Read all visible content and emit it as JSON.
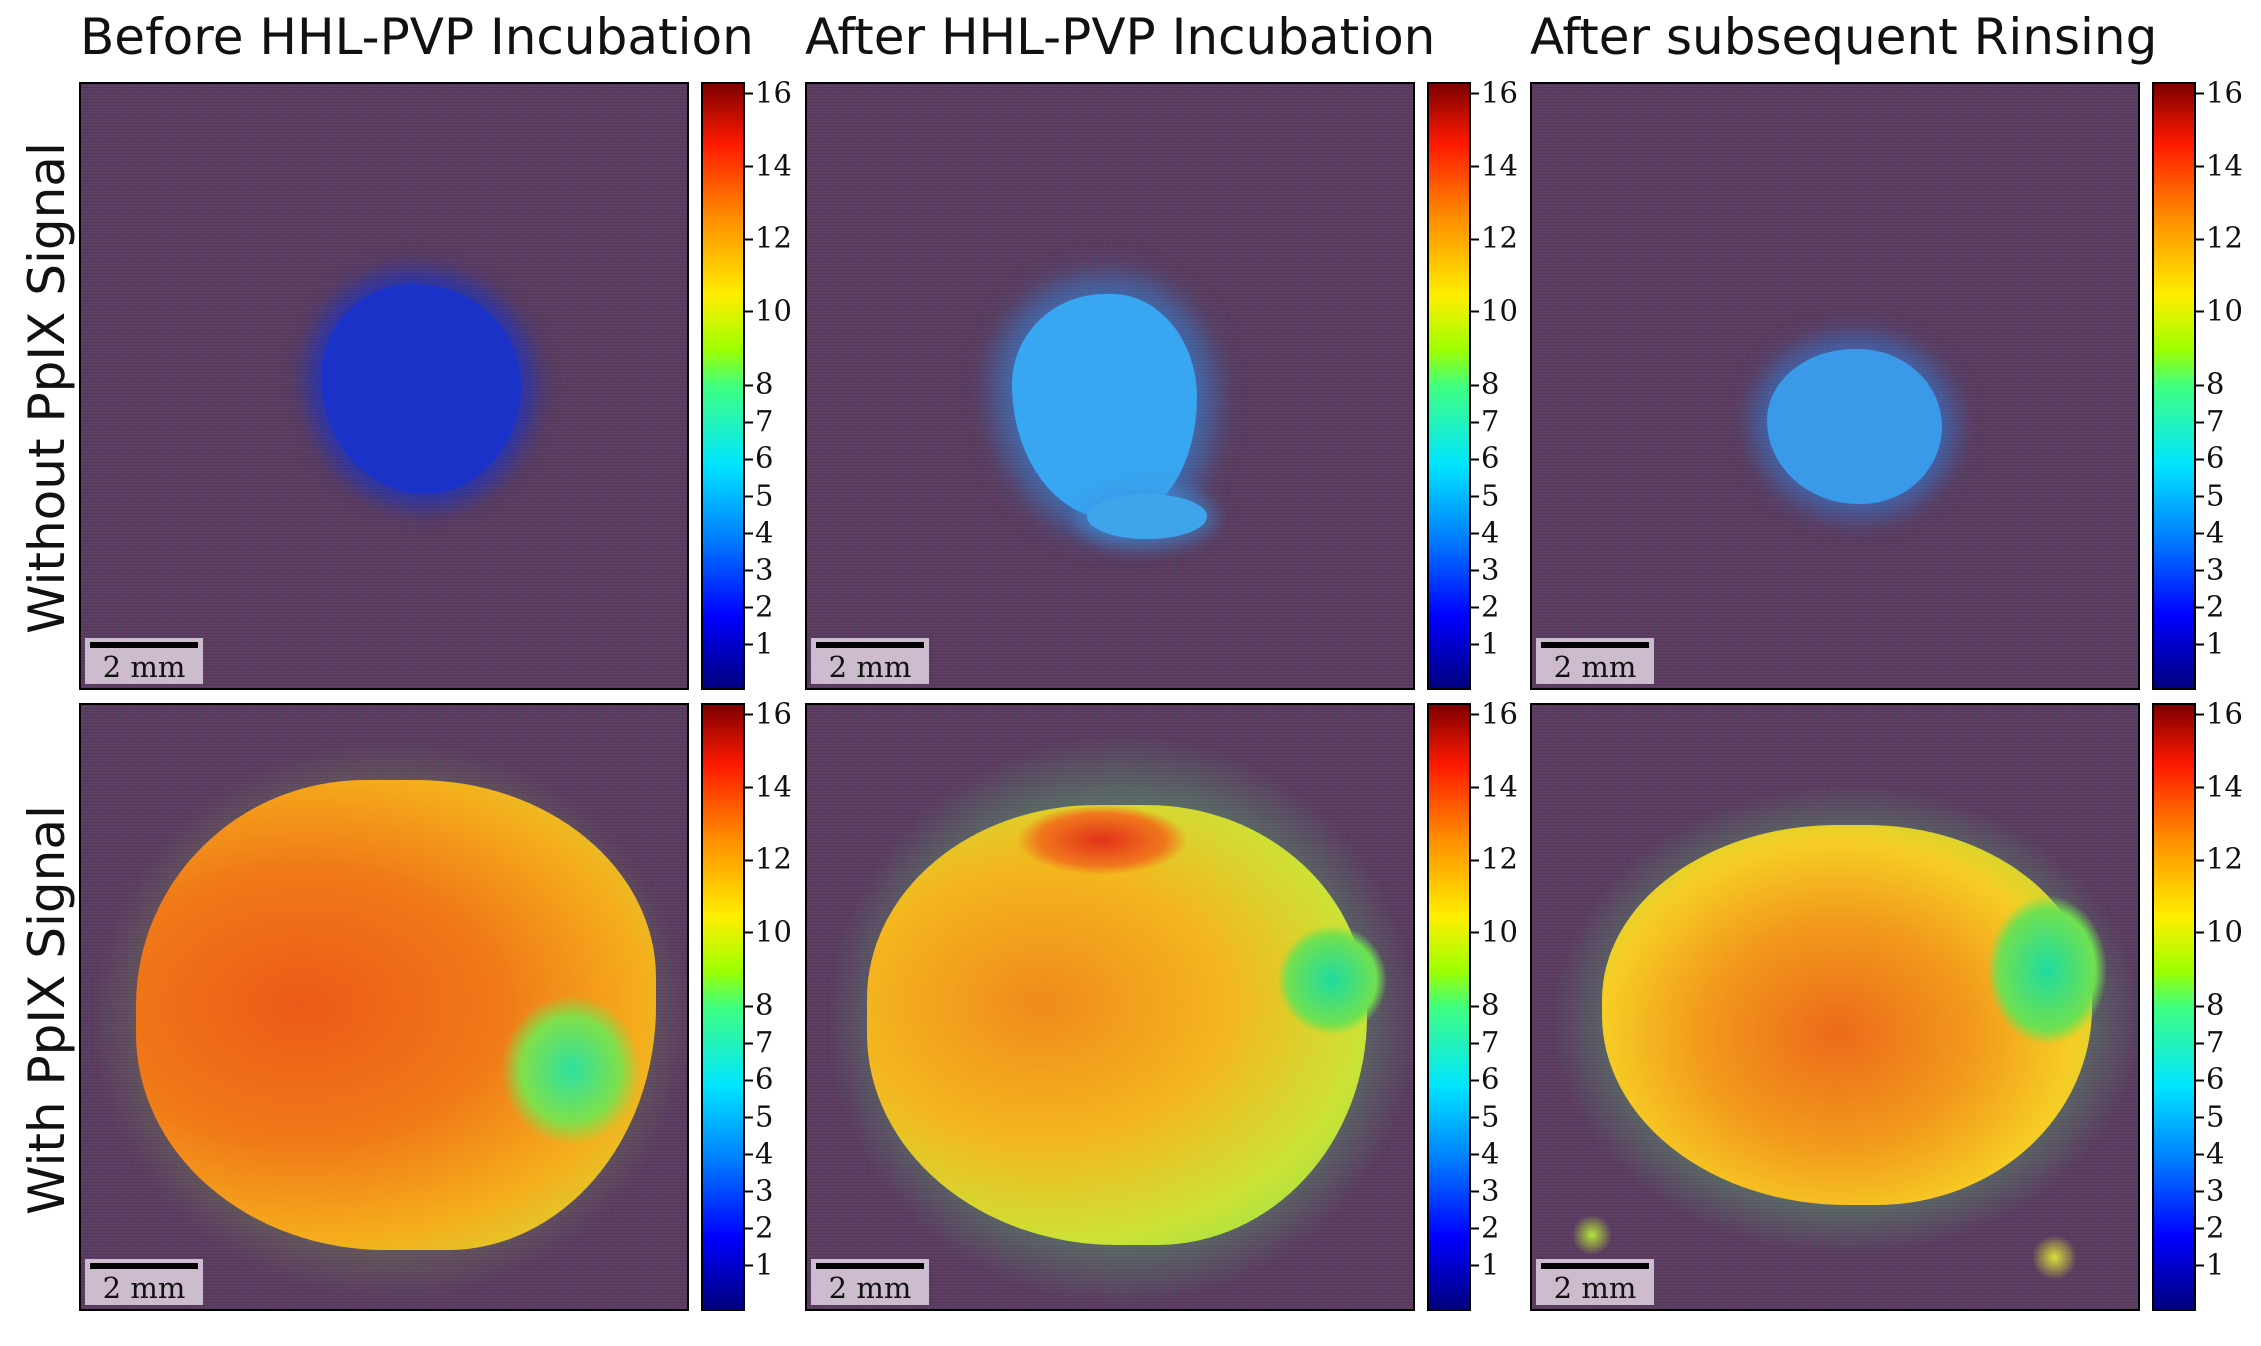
{
  "figure": {
    "column_titles": [
      "Before HHL-PVP Incubation",
      "After HHL-PVP Incubation",
      "After subsequent Rinsing"
    ],
    "row_labels": [
      "Without PpIX Signal",
      "With PpIX Signal"
    ],
    "scale_bar_label": "2 mm",
    "colorbar_ticks": [
      "16",
      "14",
      "12",
      "10",
      "8",
      "7",
      "6",
      "5",
      "4",
      "3",
      "2",
      "1"
    ]
  },
  "colors": {
    "background_noise": "#5b3c66",
    "colormap": "jet"
  }
}
